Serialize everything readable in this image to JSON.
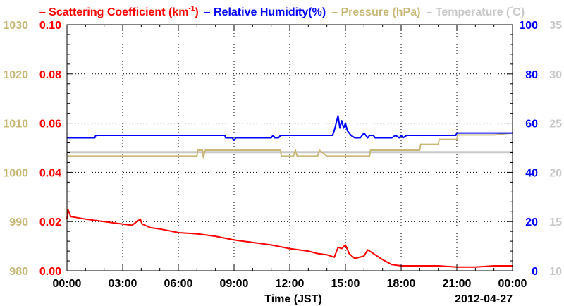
{
  "chart_data": {
    "type": "line",
    "date": "2012-04-27",
    "xlabel": "Time (JST)",
    "x_ticks": [
      "00:00",
      "03:00",
      "06:00",
      "09:00",
      "12:00",
      "15:00",
      "18:00",
      "21:00",
      "00:00"
    ],
    "xlim": [
      0,
      24
    ],
    "grid": true,
    "legend": {
      "placement": "top"
    },
    "axes": {
      "pressure": {
        "ticks": [
          "1030",
          "1020",
          "1010",
          "1000",
          "990",
          "980"
        ],
        "range": [
          980,
          1030
        ],
        "color": "#c8b878"
      },
      "scattering": {
        "ticks": [
          "0.10",
          "0.08",
          "0.06",
          "0.04",
          "0.02",
          "0.00"
        ],
        "range": [
          0,
          0.1
        ],
        "color": "#ff0000"
      },
      "humidity": {
        "ticks": [
          "100",
          "80",
          "60",
          "40",
          "20",
          "0"
        ],
        "range": [
          0,
          100
        ],
        "color": "#0000ff"
      },
      "temperature": {
        "ticks": [
          "35",
          "30",
          "25",
          "20",
          "15",
          "10"
        ],
        "range": [
          10,
          35
        ],
        "color": "#c8c8c8"
      }
    },
    "series": [
      {
        "name": "Scattering Coefficient (km",
        "name_sup": "-1",
        "name_tail": ")",
        "axis": "scattering",
        "color": "#ff0000",
        "x": [
          0,
          0.05,
          0.2,
          1,
          2,
          3,
          3.5,
          3.95,
          4.05,
          4.5,
          5,
          6,
          7,
          8,
          9,
          10,
          11,
          12,
          13,
          13.5,
          14,
          14.4,
          14.6,
          14.8,
          15,
          15.2,
          15.5,
          16,
          16.2,
          16.5,
          17,
          17.5,
          18,
          19,
          20,
          21,
          22,
          23,
          24
        ],
        "values": [
          0.021,
          0.025,
          0.022,
          0.021,
          0.02,
          0.019,
          0.0185,
          0.021,
          0.019,
          0.0175,
          0.017,
          0.0155,
          0.015,
          0.014,
          0.0125,
          0.0115,
          0.0105,
          0.009,
          0.008,
          0.007,
          0.0065,
          0.0055,
          0.0095,
          0.009,
          0.0105,
          0.007,
          0.005,
          0.006,
          0.0085,
          0.007,
          0.0045,
          0.0025,
          0.002,
          0.002,
          0.002,
          0.0015,
          0.0015,
          0.002,
          0.002
        ]
      },
      {
        "name": "Relative Humidity(%)",
        "axis": "humidity",
        "color": "#0000ff",
        "x": [
          0,
          1.5,
          1.55,
          8.5,
          8.55,
          8.9,
          9.0,
          9.1,
          11,
          11.1,
          11.2,
          11.4,
          11.5,
          11.7,
          14.3,
          14.4,
          14.6,
          14.7,
          14.8,
          14.9,
          15.0,
          15.1,
          15.3,
          15.5,
          15.8,
          16.0,
          16.2,
          16.3,
          16.5,
          16.6,
          17.0,
          17.5,
          17.7,
          17.9,
          18.0,
          18.1,
          18.3,
          19.0,
          20.0,
          20.95,
          21.0,
          24
        ],
        "values": [
          54,
          54,
          55,
          55,
          54,
          54,
          53,
          54,
          54,
          55,
          54,
          54,
          55,
          55,
          55,
          57,
          63,
          58,
          61,
          58,
          60,
          57,
          55,
          54,
          54,
          56,
          54,
          55,
          55,
          54,
          54,
          54,
          55,
          54,
          55,
          54,
          55,
          55,
          55,
          55,
          56,
          56
        ]
      },
      {
        "name": "Pressure (hPa)",
        "axis": "pressure",
        "color": "#c8b878",
        "x": [
          0,
          7.0,
          7.05,
          7.3,
          7.35,
          7.45,
          11.5,
          11.55,
          12.2,
          12.3,
          12.4,
          13.5,
          13.6,
          14.0,
          16.3,
          16.35,
          19.0,
          19.05,
          20.0,
          20.05,
          21.0,
          21.05,
          22.0,
          23.0,
          24
        ],
        "values": [
          1003.3,
          1003.3,
          1004.5,
          1004.5,
          1003.0,
          1004.5,
          1004.5,
          1003.3,
          1003.3,
          1004.5,
          1003.3,
          1003.3,
          1004.5,
          1003.3,
          1003.3,
          1004.5,
          1004.5,
          1005.7,
          1005.7,
          1006.7,
          1006.7,
          1007.6,
          1007.6,
          1007.6,
          1008.0
        ]
      },
      {
        "name": "Temperature (",
        "name_sup": "°",
        "name_tail": "C)",
        "axis": "temperature",
        "color": "#c8c8c8",
        "x": [
          0,
          24
        ],
        "values": [
          22.05,
          22.05
        ]
      }
    ]
  }
}
